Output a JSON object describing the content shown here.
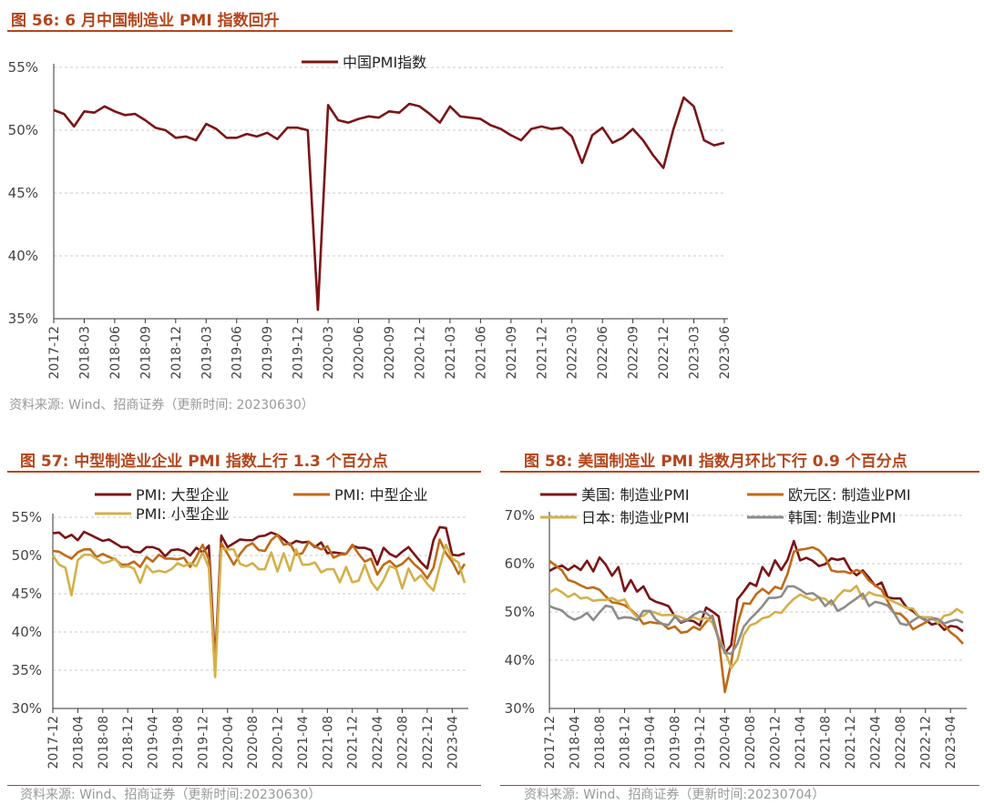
{
  "fig56": {
    "title": "图 56:  6 月中国制造业 PMI 指数回升",
    "source": "资料来源: Wind、招商证券（更新时间: 20230630）",
    "chart_data": {
      "type": "line",
      "x": [
        "2017-12",
        "2018-01",
        "2018-02",
        "2018-03",
        "2018-04",
        "2018-05",
        "2018-06",
        "2018-07",
        "2018-08",
        "2018-09",
        "2018-10",
        "2018-11",
        "2018-12",
        "2019-01",
        "2019-02",
        "2019-03",
        "2019-04",
        "2019-05",
        "2019-06",
        "2019-07",
        "2019-08",
        "2019-09",
        "2019-10",
        "2019-11",
        "2019-12",
        "2020-01",
        "2020-02",
        "2020-03",
        "2020-04",
        "2020-05",
        "2020-06",
        "2020-07",
        "2020-08",
        "2020-09",
        "2020-10",
        "2020-11",
        "2020-12",
        "2021-01",
        "2021-02",
        "2021-03",
        "2021-04",
        "2021-05",
        "2021-06",
        "2021-07",
        "2021-08",
        "2021-09",
        "2021-10",
        "2021-11",
        "2021-12",
        "2022-01",
        "2022-02",
        "2022-03",
        "2022-04",
        "2022-05",
        "2022-06",
        "2022-07",
        "2022-08",
        "2022-09",
        "2022-10",
        "2022-11",
        "2022-12",
        "2023-01",
        "2023-02",
        "2023-03",
        "2023-04",
        "2023-05",
        "2023-06"
      ],
      "xticks": [
        "2017-12",
        "2018-03",
        "2018-06",
        "2018-09",
        "2018-12",
        "2019-03",
        "2019-06",
        "2019-09",
        "2019-12",
        "2020-03",
        "2020-06",
        "2020-09",
        "2020-12",
        "2021-03",
        "2021-06",
        "2021-09",
        "2021-12",
        "2022-03",
        "2022-06",
        "2022-09",
        "2022-12",
        "2023-03",
        "2023-06"
      ],
      "yticks": [
        "35%",
        "40%",
        "45%",
        "50%",
        "55%"
      ],
      "ylim": [
        35,
        55
      ],
      "series": [
        {
          "name": "中国PMI指数",
          "color": "#7b1416",
          "values": [
            51.6,
            51.3,
            50.3,
            51.5,
            51.4,
            51.9,
            51.5,
            51.2,
            51.3,
            50.8,
            50.2,
            50.0,
            49.4,
            49.5,
            49.2,
            50.5,
            50.1,
            49.4,
            49.4,
            49.7,
            49.5,
            49.8,
            49.3,
            50.2,
            50.2,
            50.0,
            35.7,
            52.0,
            50.8,
            50.6,
            50.9,
            51.1,
            51.0,
            51.5,
            51.4,
            52.1,
            51.9,
            51.3,
            50.6,
            51.9,
            51.1,
            51.0,
            50.9,
            50.4,
            50.1,
            49.6,
            49.2,
            50.1,
            50.3,
            50.1,
            50.2,
            49.5,
            47.4,
            49.6,
            50.2,
            49.0,
            49.4,
            50.1,
            49.2,
            48.0,
            47.0,
            50.1,
            52.6,
            51.9,
            49.2,
            48.8,
            49.0
          ]
        }
      ]
    }
  },
  "fig57": {
    "title": "图 57:  中型制造业企业 PMI 指数上行 1.3 个百分点",
    "source": "资料来源: Wind、招商证券（更新时间:20230630）",
    "chart_data": {
      "type": "line",
      "xticks": [
        "2017-12",
        "2018-04",
        "2018-08",
        "2018-12",
        "2019-04",
        "2019-08",
        "2019-12",
        "2020-04",
        "2020-08",
        "2020-12",
        "2021-04",
        "2021-08",
        "2021-12",
        "2022-04",
        "2022-08",
        "2022-12",
        "2023-04"
      ],
      "yticks": [
        "30%",
        "35%",
        "40%",
        "45%",
        "50%",
        "55%"
      ],
      "ylim": [
        30,
        55
      ],
      "series": [
        {
          "name": "PMI: 大型企业",
          "color": "#7b1416",
          "values": [
            52.9,
            53.0,
            52.3,
            52.7,
            52.0,
            53.1,
            52.7,
            52.3,
            51.9,
            52.1,
            51.6,
            51.1,
            51.1,
            50.5,
            50.4,
            51.1,
            51.1,
            50.8,
            49.9,
            50.7,
            50.8,
            50.6,
            50.0,
            51.0,
            50.4,
            51.3,
            36.0,
            52.6,
            51.1,
            51.6,
            52.1,
            52.0,
            52.0,
            52.5,
            52.6,
            53.0,
            52.7,
            52.1,
            51.4,
            51.9,
            51.7,
            51.8,
            51.1,
            51.7,
            50.3,
            50.4,
            50.3,
            50.2,
            51.3,
            51.0,
            51.0,
            50.7,
            48.8,
            51.0,
            50.2,
            49.8,
            50.5,
            51.1,
            50.1,
            49.1,
            48.3,
            52.0,
            53.7,
            53.6,
            50.1,
            50.0,
            50.3
          ]
        },
        {
          "name": "PMI: 中型企业",
          "color": "#c06a17",
          "values": [
            50.6,
            50.5,
            50.0,
            49.6,
            50.4,
            50.8,
            50.8,
            49.8,
            50.2,
            49.8,
            49.5,
            48.8,
            48.8,
            49.2,
            48.5,
            49.8,
            49.2,
            50.1,
            49.6,
            49.6,
            49.5,
            49.7,
            48.5,
            49.8,
            51.4,
            49.5,
            35.5,
            51.6,
            50.2,
            48.8,
            50.2,
            51.2,
            51.6,
            50.7,
            50.6,
            52.0,
            52.7,
            51.4,
            51.6,
            50.1,
            50.3,
            51.8,
            51.2,
            50.8,
            51.2,
            49.7,
            50.1,
            50.2,
            51.4,
            50.2,
            49.2,
            49.6,
            47.5,
            48.8,
            49.3,
            48.5,
            48.9,
            49.7,
            48.8,
            48.1,
            47.0,
            48.4,
            52.1,
            50.3,
            49.2,
            47.6,
            48.9
          ]
        },
        {
          "name": "PMI: 小型企业",
          "color": "#d4b04a",
          "values": [
            50.0,
            48.8,
            48.4,
            44.8,
            49.4,
            50.1,
            50.1,
            49.6,
            49.0,
            49.2,
            49.6,
            48.5,
            48.6,
            48.3,
            46.4,
            48.7,
            47.8,
            48.0,
            47.8,
            48.2,
            49.0,
            48.6,
            49.0,
            48.6,
            50.4,
            48.4,
            34.1,
            50.9,
            50.8,
            50.8,
            48.9,
            48.6,
            49.0,
            48.2,
            48.2,
            50.4,
            47.9,
            50.3,
            48.0,
            50.8,
            48.8,
            48.8,
            49.1,
            47.8,
            48.2,
            48.2,
            46.5,
            48.5,
            46.5,
            46.7,
            48.8,
            46.6,
            45.5,
            46.8,
            48.6,
            48.3,
            45.7,
            48.3,
            46.7,
            47.4,
            46.3,
            45.4,
            48.5,
            51.4,
            49.6,
            49.1,
            46.4
          ]
        }
      ]
    }
  },
  "fig58": {
    "title": "图 58:  美国制造业 PMI 指数月环比下行 0.9 个百分点",
    "source": "资料来源: Wind、招商证券（更新时间:20230704）",
    "chart_data": {
      "type": "line",
      "xticks": [
        "2017-12",
        "2018-04",
        "2018-08",
        "2018-12",
        "2019-04",
        "2019-08",
        "2019-12",
        "2020-04",
        "2020-08",
        "2020-12",
        "2021-04",
        "2021-08",
        "2021-12",
        "2022-04",
        "2022-08",
        "2022-12",
        "2023-04"
      ],
      "yticks": [
        "30%",
        "40%",
        "50%",
        "60%",
        "70%"
      ],
      "ylim": [
        30,
        70
      ],
      "series": [
        {
          "name": "美国: 制造业PMI",
          "color": "#7b1416",
          "values": [
            58.5,
            59.2,
            59.6,
            58.7,
            59.6,
            58.7,
            60.6,
            58.4,
            61.3,
            59.8,
            57.5,
            59.3,
            54.3,
            56.6,
            54.2,
            55.3,
            52.8,
            52.1,
            51.7,
            51.2,
            49.1,
            47.8,
            48.3,
            48.1,
            47.2,
            50.9,
            50.1,
            49.1,
            41.5,
            43.1,
            52.6,
            54.2,
            56.0,
            55.4,
            59.3,
            57.5,
            60.7,
            58.7,
            60.8,
            64.7,
            60.7,
            61.2,
            60.6,
            59.5,
            59.9,
            61.1,
            60.8,
            61.1,
            58.8,
            57.6,
            58.6,
            57.1,
            55.4,
            56.1,
            53.0,
            52.8,
            52.8,
            50.9,
            50.2,
            49.0,
            48.4,
            47.4,
            47.7,
            46.3,
            47.1,
            46.9,
            46.0
          ]
        },
        {
          "name": "欧元区: 制造业PMI",
          "color": "#c06a17",
          "values": [
            60.6,
            59.6,
            58.6,
            56.6,
            56.2,
            55.5,
            54.9,
            55.1,
            54.6,
            53.2,
            52.0,
            51.8,
            51.4,
            50.5,
            49.3,
            47.5,
            47.9,
            47.7,
            47.6,
            46.5,
            47.0,
            45.7,
            45.9,
            46.9,
            46.3,
            47.9,
            49.2,
            44.5,
            33.4,
            39.4,
            47.4,
            51.8,
            51.7,
            53.7,
            54.8,
            53.8,
            55.2,
            54.8,
            57.9,
            62.5,
            62.9,
            63.1,
            63.4,
            62.8,
            61.4,
            58.6,
            58.3,
            58.4,
            58.0,
            58.7,
            58.2,
            56.5,
            55.5,
            54.6,
            52.1,
            49.8,
            49.6,
            48.4,
            46.4,
            47.1,
            47.8,
            48.8,
            48.5,
            47.3,
            45.8,
            44.8,
            43.4
          ]
        },
        {
          "name": "日本: 制造业PMI",
          "color": "#d4b04a",
          "values": [
            54.0,
            54.8,
            54.1,
            53.1,
            53.8,
            52.8,
            53.0,
            52.3,
            52.5,
            52.5,
            52.9,
            52.2,
            52.6,
            50.3,
            48.9,
            49.2,
            50.2,
            49.8,
            49.3,
            49.4,
            49.3,
            48.9,
            48.4,
            48.9,
            48.4,
            48.8,
            47.8,
            44.8,
            41.9,
            38.4,
            40.1,
            45.2,
            47.2,
            47.7,
            48.7,
            49.0,
            50.0,
            49.8,
            51.4,
            52.7,
            53.6,
            53.0,
            52.4,
            53.0,
            52.7,
            51.5,
            53.2,
            54.5,
            54.3,
            55.4,
            52.7,
            54.1,
            53.5,
            53.3,
            52.7,
            52.1,
            51.5,
            50.8,
            50.7,
            49.0,
            48.9,
            48.9,
            47.7,
            49.2,
            49.5,
            50.6,
            49.8
          ]
        },
        {
          "name": "韩国: 制造业PMI",
          "color": "#8c8c8c",
          "values": [
            51.2,
            50.7,
            50.3,
            49.1,
            48.4,
            48.9,
            49.8,
            48.3,
            49.9,
            51.3,
            51.0,
            48.6,
            48.9,
            48.8,
            48.3,
            50.2,
            50.2,
            48.4,
            47.5,
            47.3,
            49.0,
            48.0,
            48.4,
            49.4,
            50.1,
            49.8,
            48.7,
            44.2,
            41.6,
            41.3,
            43.4,
            46.9,
            48.5,
            49.8,
            51.2,
            52.9,
            52.9,
            53.2,
            55.3,
            55.3,
            54.6,
            53.7,
            53.9,
            53.0,
            51.2,
            52.4,
            50.2,
            50.9,
            51.9,
            52.8,
            53.8,
            51.2,
            52.1,
            51.8,
            51.3,
            49.8,
            47.6,
            47.3,
            48.2,
            49.0,
            48.2,
            48.5,
            48.5,
            47.6,
            48.1,
            48.4,
            47.8
          ]
        }
      ]
    }
  }
}
